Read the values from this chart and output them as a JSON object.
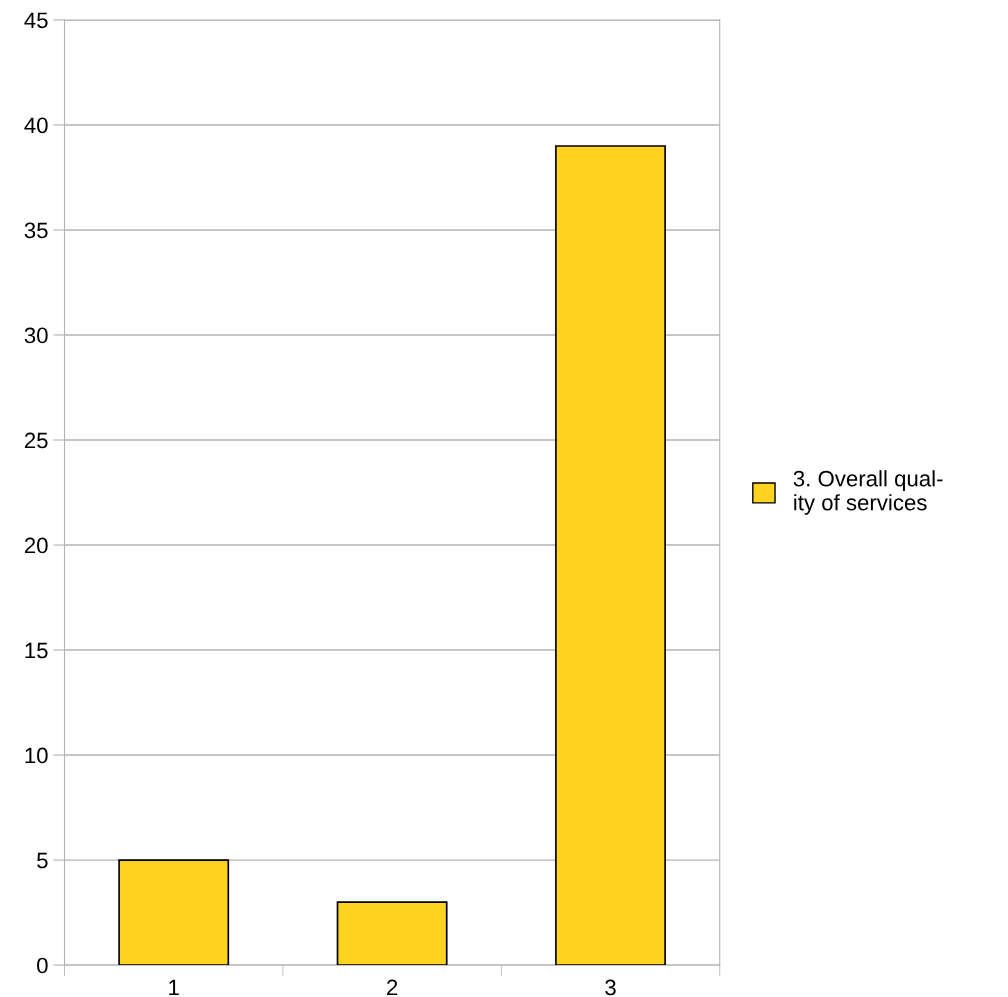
{
  "chart_data": {
    "type": "bar",
    "categories": [
      "1",
      "2",
      "3"
    ],
    "series": [
      {
        "name": "3. Overall qual-\nity of services",
        "color": "#ffd320",
        "values": [
          5,
          3,
          39
        ]
      }
    ],
    "ylim": [
      0,
      45
    ],
    "yticks": [
      0,
      5,
      10,
      15,
      20,
      25,
      30,
      35,
      40,
      45
    ],
    "grid": "y",
    "legend": "right"
  }
}
